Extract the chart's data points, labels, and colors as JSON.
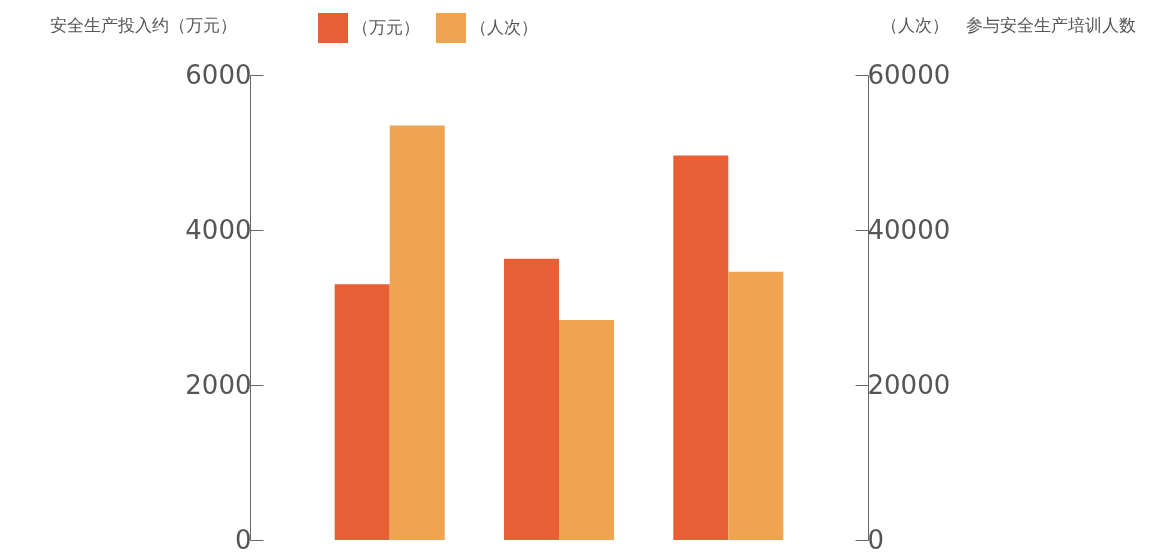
{
  "chart_data": {
    "type": "bar",
    "ylabel": "安全生产投入约（万元）",
    "y2label": "（人次）　参与安全生产培训人数",
    "categories": [
      null,
      null,
      null
    ],
    "series": [
      {
        "name": "（万元）",
        "color": "#e85f36",
        "values": [
          3300,
          3630,
          4960
        ]
      },
      {
        "name": "（人次）",
        "color": "#f0a44f",
        "values": [
          53500,
          28400,
          34600
        ],
        "axis": "y2"
      }
    ],
    "ylim": [
      0,
      6000
    ],
    "yticks": [
      0,
      2000,
      4000,
      6000
    ],
    "y2lim": [
      0,
      60000
    ],
    "y2ticks": [
      0,
      20000,
      40000,
      60000
    ],
    "grid": false,
    "legend": "top",
    "tick_labels": "y"
  }
}
